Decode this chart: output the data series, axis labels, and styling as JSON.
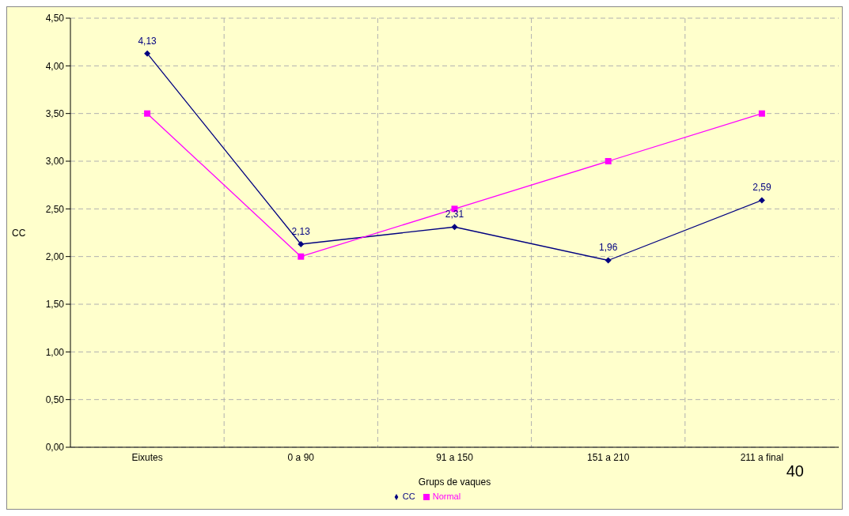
{
  "chart_data": {
    "type": "line",
    "xlabel": "Grups de vaques",
    "ylabel": "CC",
    "categories": [
      "Eixutes",
      "0 a 90",
      "91 a 150",
      "151 a 210",
      "211 a final"
    ],
    "series": [
      {
        "name": "CC",
        "color": "#000080",
        "marker": "diamond",
        "values": [
          4.13,
          2.13,
          2.31,
          1.96,
          2.59
        ],
        "value_labels": [
          "4,13",
          "2,13",
          "2,31",
          "1,96",
          "2,59"
        ]
      },
      {
        "name": "Normal",
        "color": "#ff00ff",
        "marker": "square",
        "values": [
          3.5,
          2.0,
          2.5,
          3.0,
          3.5
        ]
      }
    ],
    "ylim": [
      0,
      4.5
    ],
    "yticks": [
      {
        "value": 0,
        "label": "0,00"
      },
      {
        "value": 0.5,
        "label": "0,50"
      },
      {
        "value": 1,
        "label": "1,00"
      },
      {
        "value": 1.5,
        "label": "1,50"
      },
      {
        "value": 2,
        "label": "2,00"
      },
      {
        "value": 2.5,
        "label": "2,50"
      },
      {
        "value": 3,
        "label": "3,00"
      },
      {
        "value": 3.5,
        "label": "3,50"
      },
      {
        "value": 4,
        "label": "4,00"
      },
      {
        "value": 4.5,
        "label": "4,50"
      }
    ],
    "grid": true,
    "legend": "bottom",
    "line_style": "solid",
    "annotations": [
      "40"
    ]
  }
}
